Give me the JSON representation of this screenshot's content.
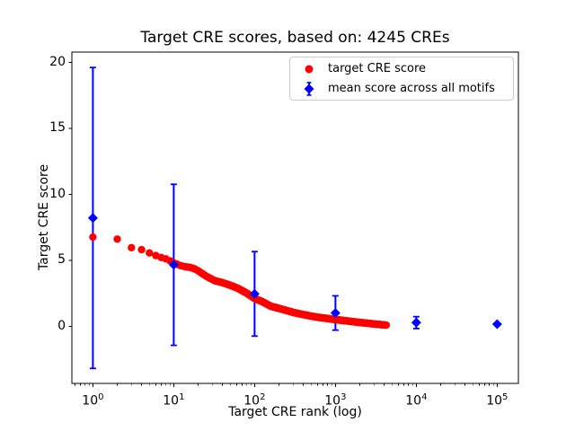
{
  "figure": {
    "background": "#ffffff"
  },
  "chart_data": {
    "type": "scatter",
    "title": "Target CRE scores, based on: 4245 CREs",
    "xlabel": "Target CRE rank (log)",
    "ylabel": "Target CRE score",
    "x_scale": "log",
    "xlim_log10": [
      -0.26,
      5.263
    ],
    "ylim": [
      -4.35,
      20.77
    ],
    "xtick_base": 10,
    "xtick_exponents": [
      0,
      1,
      2,
      3,
      4,
      5
    ],
    "yticks": [
      0,
      5,
      10,
      15,
      20
    ],
    "grid": false,
    "legend": {
      "position": "upper right"
    },
    "series": [
      {
        "name": "target CRE score",
        "type": "scatter",
        "marker": "circle",
        "color": "#ff0000",
        "n_points": 4245,
        "anchors": [
          [
            1,
            6.75
          ],
          [
            2,
            6.6
          ],
          [
            3,
            5.95
          ],
          [
            4,
            5.8
          ],
          [
            5,
            5.55
          ],
          [
            6,
            5.35
          ],
          [
            7,
            5.2
          ],
          [
            8,
            5.1
          ],
          [
            9,
            4.95
          ],
          [
            10,
            4.8
          ],
          [
            12,
            4.6
          ],
          [
            14,
            4.5
          ],
          [
            16,
            4.45
          ],
          [
            18,
            4.35
          ],
          [
            20,
            4.2
          ],
          [
            25,
            3.8
          ],
          [
            32,
            3.45
          ],
          [
            40,
            3.3
          ],
          [
            50,
            3.1
          ],
          [
            63,
            2.85
          ],
          [
            80,
            2.5
          ],
          [
            100,
            2.1
          ],
          [
            125,
            1.85
          ],
          [
            160,
            1.5
          ],
          [
            200,
            1.35
          ],
          [
            250,
            1.18
          ],
          [
            320,
            1.0
          ],
          [
            400,
            0.88
          ],
          [
            500,
            0.76
          ],
          [
            630,
            0.66
          ],
          [
            800,
            0.58
          ],
          [
            1000,
            0.5
          ],
          [
            1300,
            0.42
          ],
          [
            1600,
            0.35
          ],
          [
            2000,
            0.28
          ],
          [
            2500,
            0.22
          ],
          [
            3200,
            0.15
          ],
          [
            4245,
            0.08
          ]
        ]
      },
      {
        "name": "mean score across all motifs",
        "type": "errorbar",
        "marker": "diamond",
        "color": "#0000ff",
        "points": [
          {
            "rank": 1,
            "mean": 8.2,
            "err": 11.4
          },
          {
            "rank": 10,
            "mean": 4.65,
            "err": 6.1
          },
          {
            "rank": 100,
            "mean": 2.45,
            "err": 3.2
          },
          {
            "rank": 1000,
            "mean": 1.0,
            "err": 1.3
          },
          {
            "rank": 10000,
            "mean": 0.27,
            "err": 0.45
          },
          {
            "rank": 100000,
            "mean": 0.15,
            "err": 0
          }
        ]
      }
    ]
  }
}
